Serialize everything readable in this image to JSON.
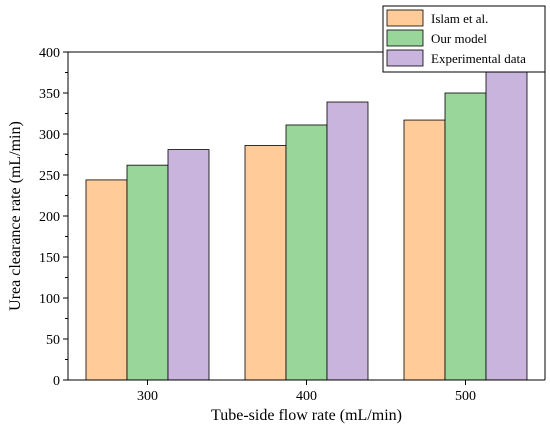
{
  "chart_data": {
    "type": "bar",
    "categories": [
      "300",
      "400",
      "500"
    ],
    "series": [
      {
        "name": "Islam et al.",
        "values": [
          244,
          286,
          317
        ],
        "color": "#ffcc99"
      },
      {
        "name": "Our model",
        "values": [
          262,
          311,
          350
        ],
        "color": "#99d699"
      },
      {
        "name": "Experimental data",
        "values": [
          281,
          339,
          378
        ],
        "color": "#c8b4dc"
      }
    ],
    "xlabel": "Tube-side flow rate (mL/min)",
    "ylabel": "Urea clearance rate (mL/min)",
    "ylim": [
      0,
      400
    ],
    "yticks": [
      0,
      50,
      100,
      150,
      200,
      250,
      300,
      350,
      400
    ],
    "grid": false,
    "legend_position": "top-right"
  }
}
